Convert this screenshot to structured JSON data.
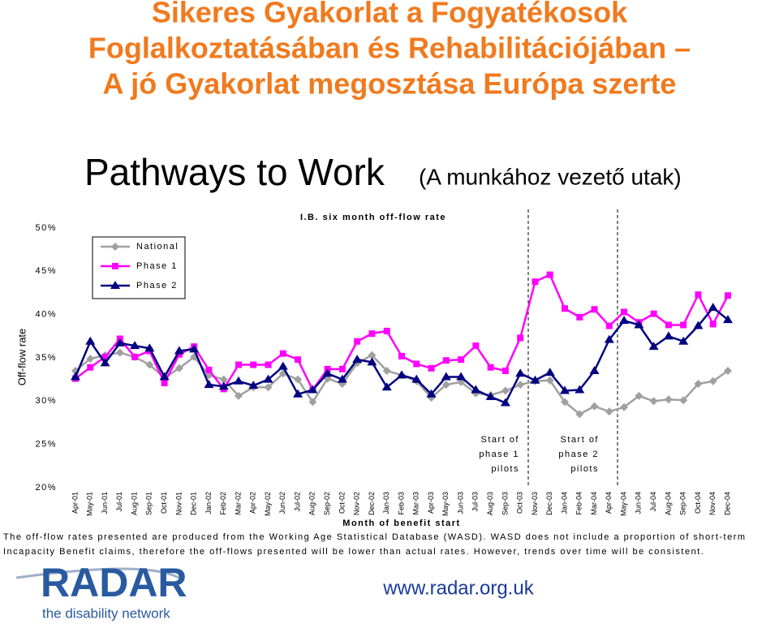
{
  "header": {
    "title": [
      "Sikeres Gyakorlat a Fogyatékosok",
      "Foglalkoztatásában és Rehabilitációjában –",
      "A jó Gyakorlat megosztása Európa szerte"
    ],
    "subtitle": "Pathways to Work",
    "subtitle_note": "(A munkához vezető utak)"
  },
  "chart_data": {
    "type": "line",
    "title": "I.B. six month off-flow rate",
    "y_label": "Off-flow rate",
    "x_label": "Month of benefit start",
    "categories": [
      "Apr-01",
      "May-01",
      "Jun-01",
      "Jul-01",
      "Aug-01",
      "Sep-01",
      "Oct-01",
      "Nov-01",
      "Dec-01",
      "Jan-02",
      "Feb-02",
      "Mar-02",
      "Apr-02",
      "May-02",
      "Jun-02",
      "Jul-02",
      "Aug-02",
      "Sep-02",
      "Oct-02",
      "Nov-02",
      "Dec-02",
      "Jan-03",
      "Feb-03",
      "Mar-03",
      "Apr-03",
      "May-03",
      "Jun-03",
      "Jul-03",
      "Aug-03",
      "Sep-03",
      "Oct-03",
      "Nov-03",
      "Dec-03",
      "Jan-04",
      "Feb-04",
      "Mar-04",
      "Apr-04",
      "May-04",
      "Jun-04",
      "Jul-04",
      "Aug-04",
      "Sep-04",
      "Oct-04",
      "Nov-04",
      "Dec-04"
    ],
    "series": [
      {
        "name": "National",
        "color": "#a0a0a0",
        "marker": "diamond",
        "values": [
          33.5,
          34.9,
          35.3,
          35.6,
          35.1,
          34.2,
          32.7,
          33.8,
          35.1,
          33.0,
          32.5,
          30.6,
          31.6,
          31.6,
          33.2,
          32.5,
          29.9,
          32.6,
          32.0,
          34.4,
          35.3,
          33.5,
          33.0,
          32.3,
          30.4,
          31.9,
          32.2,
          30.9,
          30.7,
          31.2,
          31.9,
          32.3,
          32.4,
          29.9,
          28.5,
          29.4,
          28.8,
          29.3,
          30.6,
          30.0,
          30.2,
          30.1,
          32.0,
          32.3,
          33.5
        ]
      },
      {
        "name": "Phase 1",
        "color": "#ff00ff",
        "marker": "square",
        "values": [
          32.6,
          33.9,
          35.1,
          37.2,
          35.1,
          35.8,
          32.1,
          35.4,
          36.3,
          33.6,
          31.4,
          34.2,
          34.2,
          34.2,
          35.5,
          34.8,
          31.3,
          33.7,
          33.7,
          36.9,
          37.8,
          38.1,
          35.2,
          34.3,
          33.8,
          34.7,
          34.8,
          36.4,
          33.9,
          33.5,
          37.3,
          43.8,
          44.6,
          40.7,
          39.7,
          40.6,
          38.7,
          40.3,
          39.1,
          40.1,
          38.8,
          38.8,
          42.3,
          38.9,
          42.2
        ]
      },
      {
        "name": "Phase 2",
        "color": "#000080",
        "marker": "triangle",
        "values": [
          32.8,
          36.9,
          34.4,
          36.7,
          36.4,
          36.1,
          32.8,
          35.8,
          36.0,
          31.9,
          31.7,
          32.3,
          31.8,
          32.5,
          34.0,
          30.8,
          31.3,
          33.2,
          32.5,
          34.8,
          34.5,
          31.6,
          33.0,
          32.5,
          30.8,
          32.8,
          32.8,
          31.3,
          30.5,
          29.8,
          33.2,
          32.4,
          33.3,
          31.2,
          31.3,
          33.5,
          37.1,
          39.3,
          38.8,
          36.3,
          37.5,
          36.9,
          38.7,
          40.8,
          39.4
        ]
      }
    ],
    "ylim": [
      20,
      50
    ],
    "yticks": [
      {
        "value": 20,
        "label": "20%"
      },
      {
        "value": 25,
        "label": "25%"
      },
      {
        "value": 30,
        "label": "30%"
      },
      {
        "value": 35,
        "label": "35%"
      },
      {
        "value": 40,
        "label": "40%"
      },
      {
        "value": 45,
        "label": "45%"
      },
      {
        "value": 50,
        "label": "50%"
      }
    ],
    "annotations": [
      [
        "Start of",
        "phase 1",
        "pilots"
      ],
      [
        "Start of",
        "phase 2",
        "pilots"
      ]
    ]
  },
  "footnote": [
    "The off-flow rates presented are produced from the Working Age Statistical Database (WASD). WASD does not include a proportion of short-term",
    "Incapacity Benefit claims, therefore the off-flows presented will be lower than actual rates. However, trends over time will be consistent."
  ],
  "footer": {
    "logo": "RADAR",
    "logo_tagline": "the disability network",
    "url": "www.radar.org.uk"
  }
}
